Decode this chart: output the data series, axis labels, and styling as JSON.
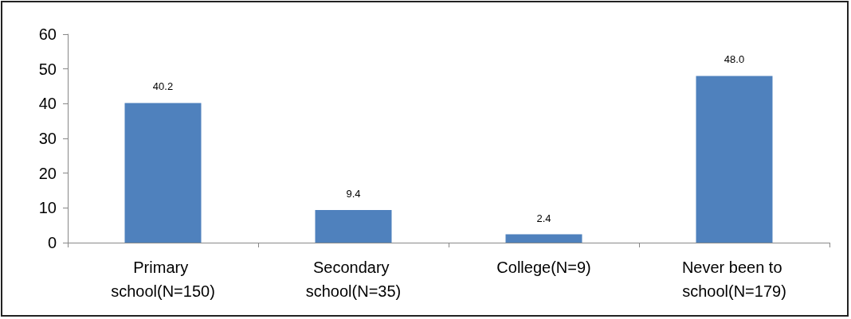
{
  "chart_data": {
    "type": "bar",
    "categories": [
      "Primary school(N=150)",
      "Secondary school(N=35)",
      "College(N=9)",
      "Never been to school(N=179)"
    ],
    "values": [
      40.2,
      9.4,
      2.4,
      48.0
    ],
    "value_labels": [
      "40.2",
      "9.4",
      "2.4",
      "48.0"
    ],
    "color": "#4f81bd",
    "ylim": [
      0,
      60
    ],
    "yticks": [
      0,
      10,
      20,
      30,
      40,
      50,
      60
    ],
    "grid": false
  }
}
